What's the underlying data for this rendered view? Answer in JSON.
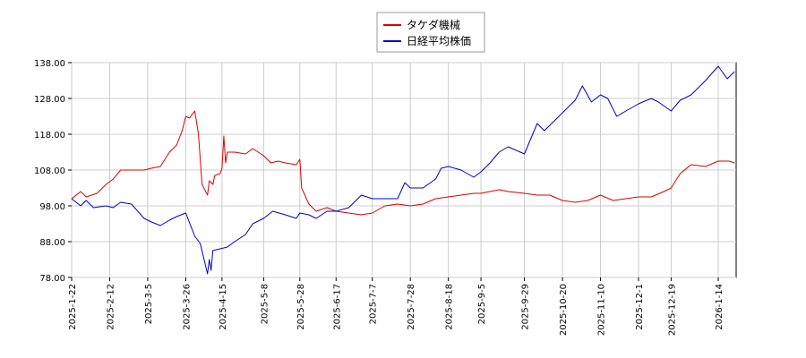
{
  "chart_data": {
    "type": "line",
    "title": "",
    "xlabel": "",
    "ylabel": "",
    "ylim": [
      78,
      138
    ],
    "y_ticks": [
      "78.00",
      "88.00",
      "98.00",
      "108.00",
      "118.00",
      "128.00",
      "138.00"
    ],
    "x_ticks": [
      "2025-1-22",
      "2025-2-12",
      "2025-3-5",
      "2025-3-26",
      "2025-4-15",
      "2025-5-8",
      "2025-5-28",
      "2025-6-17",
      "2025-7-7",
      "2025-7-28",
      "2025-8-18",
      "2025-9-5",
      "2025-9-29",
      "2025-10-20",
      "2025-11-10",
      "2025-12-1",
      "2025-12-19",
      "2026-1-14"
    ],
    "grid": true,
    "legend_position": "top-center",
    "series": [
      {
        "name": "タケダ機械",
        "color": "#dd0000",
        "points": [
          [
            "2025-1-22",
            100.0
          ],
          [
            "2025-1-27",
            102.0
          ],
          [
            "2025-1-30",
            100.5
          ],
          [
            "2025-2-5",
            101.5
          ],
          [
            "2025-2-10",
            104.0
          ],
          [
            "2025-2-14",
            105.5
          ],
          [
            "2025-2-18",
            108.0
          ],
          [
            "2025-2-24",
            108.0
          ],
          [
            "2025-3-3",
            108.0
          ],
          [
            "2025-3-7",
            108.5
          ],
          [
            "2025-3-12",
            109.0
          ],
          [
            "2025-3-17",
            113.0
          ],
          [
            "2025-3-21",
            115.0
          ],
          [
            "2025-3-24",
            119.0
          ],
          [
            "2025-3-26",
            123.0
          ],
          [
            "2025-3-28",
            122.5
          ],
          [
            "2025-3-31",
            124.5
          ],
          [
            "2025-4-2",
            118.0
          ],
          [
            "2025-4-4",
            104.0
          ],
          [
            "2025-4-7",
            101.0
          ],
          [
            "2025-4-8",
            105.0
          ],
          [
            "2025-4-10",
            104.0
          ],
          [
            "2025-4-11",
            106.5
          ],
          [
            "2025-4-14",
            107.0
          ],
          [
            "2025-4-15",
            108.5
          ],
          [
            "2025-4-16",
            117.5
          ],
          [
            "2025-4-17",
            110.0
          ],
          [
            "2025-4-18",
            113.0
          ],
          [
            "2025-4-22",
            113.0
          ],
          [
            "2025-4-28",
            112.5
          ],
          [
            "2025-5-2",
            114.0
          ],
          [
            "2025-5-8",
            112.0
          ],
          [
            "2025-5-12",
            110.0
          ],
          [
            "2025-5-16",
            110.5
          ],
          [
            "2025-5-20",
            110.0
          ],
          [
            "2025-5-26",
            109.5
          ],
          [
            "2025-5-28",
            111.0
          ],
          [
            "2025-5-29",
            103.0
          ],
          [
            "2025-6-2",
            98.5
          ],
          [
            "2025-6-6",
            96.5
          ],
          [
            "2025-6-12",
            97.5
          ],
          [
            "2025-6-17",
            96.5
          ],
          [
            "2025-6-24",
            96.0
          ],
          [
            "2025-7-1",
            95.5
          ],
          [
            "2025-7-7",
            96.0
          ],
          [
            "2025-7-14",
            98.0
          ],
          [
            "2025-7-21",
            98.5
          ],
          [
            "2025-7-28",
            98.0
          ],
          [
            "2025-8-4",
            98.5
          ],
          [
            "2025-8-11",
            100.0
          ],
          [
            "2025-8-18",
            100.5
          ],
          [
            "2025-8-25",
            101.0
          ],
          [
            "2025-9-1",
            101.5
          ],
          [
            "2025-9-5",
            101.5
          ],
          [
            "2025-9-10",
            102.0
          ],
          [
            "2025-9-15",
            102.5
          ],
          [
            "2025-9-20",
            102.0
          ],
          [
            "2025-9-29",
            101.5
          ],
          [
            "2025-10-6",
            101.0
          ],
          [
            "2025-10-13",
            101.0
          ],
          [
            "2025-10-20",
            99.5
          ],
          [
            "2025-10-27",
            99.0
          ],
          [
            "2025-11-3",
            99.5
          ],
          [
            "2025-11-10",
            101.0
          ],
          [
            "2025-11-17",
            99.5
          ],
          [
            "2025-11-24",
            100.0
          ],
          [
            "2025-12-1",
            100.5
          ],
          [
            "2025-12-8",
            100.5
          ],
          [
            "2025-12-15",
            102.0
          ],
          [
            "2025-12-19",
            103.0
          ],
          [
            "2025-12-24",
            107.0
          ],
          [
            "2025-12-30",
            109.5
          ],
          [
            "2026-1-7",
            109.0
          ],
          [
            "2026-1-14",
            110.5
          ],
          [
            "2026-1-20",
            110.5
          ],
          [
            "2026-1-23",
            110.0
          ]
        ]
      },
      {
        "name": "日経平均株価",
        "color": "#0000cc",
        "points": [
          [
            "2025-1-22",
            100.0
          ],
          [
            "2025-1-27",
            98.0
          ],
          [
            "2025-1-30",
            99.5
          ],
          [
            "2025-2-3",
            97.5
          ],
          [
            "2025-2-10",
            98.0
          ],
          [
            "2025-2-14",
            97.5
          ],
          [
            "2025-2-18",
            99.0
          ],
          [
            "2025-2-24",
            98.5
          ],
          [
            "2025-3-3",
            94.5
          ],
          [
            "2025-3-7",
            93.5
          ],
          [
            "2025-3-12",
            92.5
          ],
          [
            "2025-3-17",
            94.0
          ],
          [
            "2025-3-21",
            95.0
          ],
          [
            "2025-3-26",
            96.0
          ],
          [
            "2025-3-31",
            89.5
          ],
          [
            "2025-4-3",
            87.5
          ],
          [
            "2025-4-7",
            79.0
          ],
          [
            "2025-4-8",
            83.0
          ],
          [
            "2025-4-9",
            80.0
          ],
          [
            "2025-4-10",
            85.5
          ],
          [
            "2025-4-14",
            86.0
          ],
          [
            "2025-4-18",
            86.5
          ],
          [
            "2025-4-22",
            88.0
          ],
          [
            "2025-4-28",
            90.0
          ],
          [
            "2025-5-2",
            93.0
          ],
          [
            "2025-5-8",
            94.5
          ],
          [
            "2025-5-13",
            96.5
          ],
          [
            "2025-5-20",
            95.5
          ],
          [
            "2025-5-26",
            94.5
          ],
          [
            "2025-5-28",
            96.0
          ],
          [
            "2025-6-2",
            95.5
          ],
          [
            "2025-6-6",
            94.5
          ],
          [
            "2025-6-12",
            96.5
          ],
          [
            "2025-6-17",
            96.5
          ],
          [
            "2025-6-24",
            97.5
          ],
          [
            "2025-7-1",
            101.0
          ],
          [
            "2025-7-7",
            100.0
          ],
          [
            "2025-7-14",
            100.0
          ],
          [
            "2025-7-21",
            100.0
          ],
          [
            "2025-7-25",
            104.5
          ],
          [
            "2025-7-28",
            103.0
          ],
          [
            "2025-8-4",
            103.0
          ],
          [
            "2025-8-11",
            105.5
          ],
          [
            "2025-8-14",
            108.5
          ],
          [
            "2025-8-18",
            109.0
          ],
          [
            "2025-8-25",
            108.0
          ],
          [
            "2025-9-1",
            106.0
          ],
          [
            "2025-9-5",
            107.5
          ],
          [
            "2025-9-10",
            110.0
          ],
          [
            "2025-9-15",
            113.0
          ],
          [
            "2025-9-20",
            114.5
          ],
          [
            "2025-9-29",
            112.5
          ],
          [
            "2025-10-6",
            121.0
          ],
          [
            "2025-10-10",
            119.0
          ],
          [
            "2025-10-15",
            121.5
          ],
          [
            "2025-10-20",
            124.0
          ],
          [
            "2025-10-27",
            127.5
          ],
          [
            "2025-10-31",
            131.5
          ],
          [
            "2025-11-5",
            127.0
          ],
          [
            "2025-11-10",
            129.0
          ],
          [
            "2025-11-14",
            128.0
          ],
          [
            "2025-11-19",
            123.0
          ],
          [
            "2025-11-24",
            124.5
          ],
          [
            "2025-12-1",
            126.5
          ],
          [
            "2025-12-8",
            128.0
          ],
          [
            "2025-12-12",
            127.0
          ],
          [
            "2025-12-19",
            124.5
          ],
          [
            "2025-12-24",
            127.5
          ],
          [
            "2025-12-30",
            129.0
          ],
          [
            "2026-1-7",
            133.0
          ],
          [
            "2026-1-14",
            137.0
          ],
          [
            "2026-1-19",
            133.5
          ],
          [
            "2026-1-23",
            135.5
          ]
        ]
      }
    ]
  }
}
